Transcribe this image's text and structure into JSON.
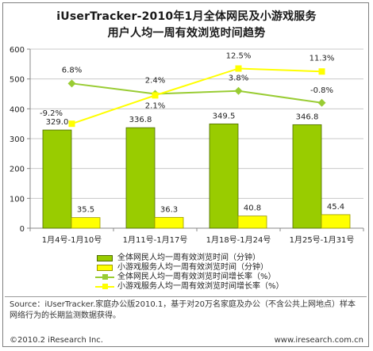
{
  "title_line1": "iUserTracker-2010年1月全体网民及小游戏服务",
  "title_line2": "用户人均一周有效浏览时间趋势",
  "colors": {
    "bar_all": "#99cc00",
    "bar_game": "#ffff00",
    "line_all": "#99cc33",
    "line_game": "#ffff00",
    "axis": "#888888"
  },
  "chart_data": {
    "type": "bar",
    "categories": [
      "1月4号-1月10号",
      "1月11号-1月17号",
      "1月18号-1月24号",
      "1月25号-1月31号"
    ],
    "ylim": [
      0,
      600
    ],
    "yticks": [
      "0",
      "100",
      "200",
      "300",
      "400",
      "500",
      "600"
    ],
    "series": [
      {
        "name": "全体网民人均一周有效浏览时间（分钟）",
        "kind": "bar",
        "values": [
          329.0,
          336.8,
          349.5,
          346.8
        ],
        "labels": [
          "329.0",
          "336.8",
          "349.5",
          "346.8"
        ]
      },
      {
        "name": "小游戏服务人均一周有效浏览时间（分钟）",
        "kind": "bar",
        "values": [
          35.5,
          36.3,
          40.8,
          45.4
        ],
        "labels": [
          "35.5",
          "36.3",
          "40.8",
          "45.4"
        ]
      },
      {
        "name": "全体网民人均一周有效浏览时间增长率（%）",
        "kind": "line",
        "values": [
          6.8,
          2.4,
          3.8,
          -0.8
        ],
        "plot_y": [
          485,
          450,
          460,
          420
        ],
        "labels": [
          "6.8%",
          "2.4%",
          "3.8%",
          "-0.8%"
        ]
      },
      {
        "name": "小游戏服务人均一周有效浏览时间增长率（%）",
        "kind": "line",
        "values": [
          -9.2,
          2.1,
          12.5,
          11.3
        ],
        "plot_y": [
          350,
          445,
          535,
          525
        ],
        "labels": [
          "-9.2%",
          "2.1%",
          "12.5%",
          "11.3%"
        ]
      }
    ]
  },
  "source_text": "Source：iUserTracker.家庭办公版2010.1，基于对20万名家庭及办公（不含公共上网地点）样本网络行为的长期监测数据获得。",
  "footer_left": "©2010.2 iResearch Inc.",
  "footer_right": "www.iresearch.com.cn"
}
